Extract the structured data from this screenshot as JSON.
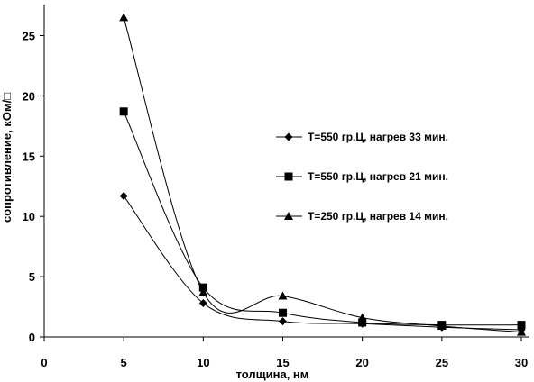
{
  "chart_data": {
    "type": "line",
    "title": "",
    "xlabel": "толщина, нм",
    "ylabel": "сопротивление, кОм/□",
    "xlim": [
      0,
      30
    ],
    "ylim": [
      0,
      25
    ],
    "xticks": [
      0,
      5,
      10,
      15,
      20,
      25,
      30
    ],
    "yticks": [
      0,
      5,
      10,
      15,
      20,
      25
    ],
    "grid": false,
    "legend_position": "right",
    "smooth": true,
    "series": [
      {
        "name": "T=550 гр.Ц, нагрев 33 мин.",
        "marker": "diamond",
        "x": [
          5,
          10,
          15,
          20,
          25,
          30
        ],
        "y": [
          11.7,
          2.8,
          1.3,
          1.1,
          0.8,
          0.6
        ]
      },
      {
        "name": "T=550 гр.Ц, нагрев 21 мин.",
        "marker": "square",
        "x": [
          5,
          10,
          15,
          20,
          25,
          30
        ],
        "y": [
          18.7,
          4.1,
          2.0,
          1.2,
          1.0,
          1.0
        ]
      },
      {
        "name": "T=250 гр.Ц, нагрев 14 мин.",
        "marker": "triangle",
        "x": [
          5,
          10,
          15,
          20,
          25,
          30
        ],
        "y": [
          26.5,
          3.7,
          3.4,
          1.6,
          0.9,
          0.4
        ]
      }
    ]
  }
}
